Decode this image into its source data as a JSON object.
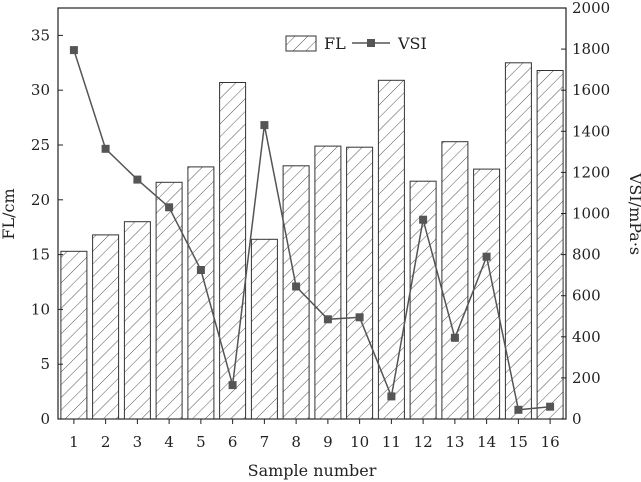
{
  "chart_data": {
    "type": "bar",
    "xlabel": "Sample number",
    "categories": [
      "1",
      "2",
      "3",
      "4",
      "5",
      "6",
      "7",
      "8",
      "9",
      "10",
      "11",
      "12",
      "13",
      "14",
      "15",
      "16"
    ],
    "series": [
      {
        "name": "FL",
        "type": "bar",
        "axis": "left",
        "values": [
          15.3,
          16.8,
          18.0,
          21.6,
          23.0,
          30.7,
          16.4,
          23.1,
          24.9,
          24.8,
          30.9,
          21.7,
          25.3,
          22.8,
          32.5,
          31.8
        ]
      },
      {
        "name": "VSI",
        "type": "line",
        "axis": "right",
        "values": [
          1795,
          1315,
          1165,
          1030,
          725,
          165,
          1430,
          645,
          485,
          495,
          110,
          970,
          395,
          790,
          45,
          60
        ]
      }
    ],
    "y_left": {
      "label": "FL/cm",
      "lim": [
        0,
        37.5
      ],
      "ticks": [
        0,
        5,
        10,
        15,
        20,
        25,
        30,
        35
      ]
    },
    "y_right": {
      "label": "VSI/mPa·s",
      "lim": [
        0,
        2000
      ],
      "ticks": [
        0,
        200,
        400,
        600,
        800,
        1000,
        1200,
        1400,
        1600,
        1800,
        2000
      ]
    },
    "legend": {
      "placement": "top-center",
      "entries": [
        "FL",
        "VSI"
      ]
    },
    "grid": false,
    "colors": {
      "bar_edge": "#333333",
      "line": "#555555",
      "marker": "#555555"
    }
  }
}
